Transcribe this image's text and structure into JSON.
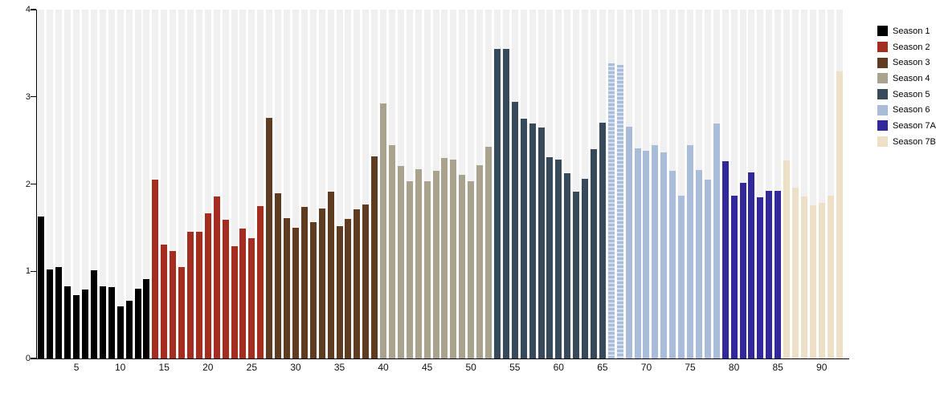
{
  "chart_data": {
    "type": "bar",
    "title": "",
    "xlabel": "",
    "ylabel": "",
    "ylim": [
      0,
      4
    ],
    "yticks": [
      "0",
      "1",
      "2",
      "3",
      "4"
    ],
    "xticks": [
      5,
      10,
      15,
      20,
      25,
      30,
      35,
      40,
      45,
      50,
      55,
      60,
      65,
      70,
      75,
      80,
      85,
      90
    ],
    "x_unit": "episode",
    "grid": "off",
    "background_stripe_color": "#f0f0f0",
    "axis_color": "#000000",
    "legend_position": "top-right",
    "hatched_episodes": [
      66,
      67
    ],
    "series": [
      {
        "name": "Season 1",
        "color": "#000000",
        "start_episode": 1,
        "values": [
          1.63,
          1.02,
          1.05,
          0.83,
          0.73,
          0.79,
          1.01,
          0.83,
          0.82,
          0.6,
          0.66,
          0.8,
          0.91
        ]
      },
      {
        "name": "Season 2",
        "color": "#a42d20",
        "start_episode": 14,
        "values": [
          2.05,
          1.31,
          1.23,
          1.05,
          1.45,
          1.45,
          1.66,
          1.86,
          1.59,
          1.29,
          1.49,
          1.38,
          1.75
        ]
      },
      {
        "name": "Season 3",
        "color": "#5f3b1f",
        "start_episode": 27,
        "values": [
          2.76,
          1.89,
          1.61,
          1.5,
          1.74,
          1.56,
          1.72,
          1.91,
          1.52,
          1.6,
          1.71,
          1.77,
          2.32
        ]
      },
      {
        "name": "Season 4",
        "color": "#a9a28d",
        "start_episode": 40,
        "values": [
          2.92,
          2.45,
          2.21,
          2.03,
          2.17,
          2.03,
          2.15,
          2.3,
          2.28,
          2.11,
          2.03,
          2.22,
          2.43
        ]
      },
      {
        "name": "Season 5",
        "color": "#374a5c",
        "start_episode": 53,
        "values": [
          3.55,
          3.55,
          2.94,
          2.75,
          2.69,
          2.65,
          2.31,
          2.28,
          2.12,
          1.91,
          2.06,
          2.4,
          2.7
        ]
      },
      {
        "name": "Season 6",
        "color": "#a9bcd9",
        "start_episode": 66,
        "values": [
          3.38,
          3.37,
          2.66,
          2.41,
          2.38,
          2.45,
          2.36,
          2.15,
          1.87,
          2.45,
          2.16,
          2.05,
          2.69
        ]
      },
      {
        "name": "Season 7A",
        "color": "#33289b",
        "start_episode": 79,
        "values": [
          2.26,
          1.87,
          2.01,
          2.13,
          1.85,
          1.92,
          1.92
        ]
      },
      {
        "name": "Season 7B",
        "color": "#ede0c7",
        "start_episode": 86,
        "values": [
          2.27,
          1.96,
          1.86,
          1.76,
          1.78,
          1.87,
          3.29
        ]
      }
    ]
  }
}
